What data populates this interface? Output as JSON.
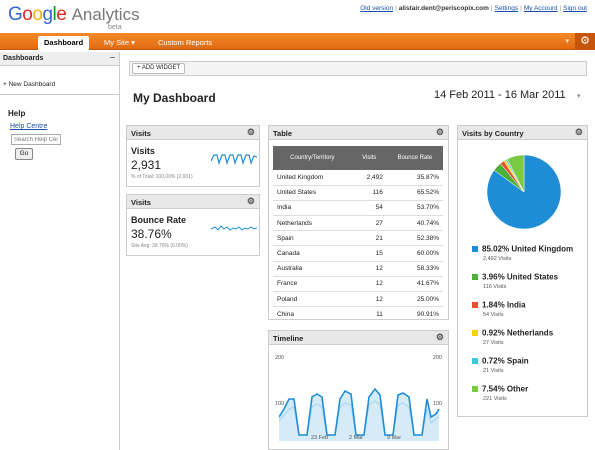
{
  "header": {
    "logo_google": "Google",
    "logo_analytics": "Analytics",
    "logo_beta": "beta",
    "links": [
      "Old version",
      "alistair.dent@periscopix.com",
      "Settings",
      "My Account",
      "Sign out"
    ]
  },
  "nav": {
    "tabs": [
      "Dashboard",
      "My Site",
      "Custom Reports"
    ],
    "my_site_caret": "▾"
  },
  "sidebar": {
    "title": "Dashboards",
    "new_dashboard": "+ New Dashboard",
    "help_title": "Help",
    "help_centre": "Help Centre",
    "search_placeholder": "Search Help Centre",
    "go": "Go"
  },
  "toolbar": {
    "add_widget": "+ ADD WIDGET"
  },
  "dashboard": {
    "title": "My Dashboard",
    "date_range": "14 Feb 2011 - 16 Mar 2011"
  },
  "widgets": {
    "visits": {
      "header": "Visits",
      "metric": "Visits",
      "value": "2,931",
      "sub": "% of Total: 100.00% (2,931)"
    },
    "bounce": {
      "header": "Visits",
      "metric": "Bounce Rate",
      "value": "38.76%",
      "sub": "Site Avg: 38.76% (0.00%)"
    },
    "table": {
      "header": "Table",
      "columns": [
        "Country/Territory",
        "Visits",
        "Bounce Rate"
      ],
      "rows": [
        [
          "United Kingdom",
          "2,492",
          "35.87%"
        ],
        [
          "United States",
          "116",
          "65.52%"
        ],
        [
          "India",
          "54",
          "53.70%"
        ],
        [
          "Netherlands",
          "27",
          "40.74%"
        ],
        [
          "Spain",
          "21",
          "52.38%"
        ],
        [
          "Canada",
          "15",
          "60.00%"
        ],
        [
          "Australia",
          "12",
          "58.33%"
        ],
        [
          "France",
          "12",
          "41.67%"
        ],
        [
          "Poland",
          "12",
          "25.00%"
        ],
        [
          "China",
          "11",
          "90.91%"
        ]
      ]
    },
    "timeline": {
      "header": "Timeline",
      "y_max_left": "200",
      "y_max_right": "200",
      "y_mid_left": "100",
      "y_mid_right": "100",
      "dates": [
        "23 Feb",
        "2 Mar",
        "9 Mar"
      ]
    },
    "country": {
      "header": "Visits by Country",
      "slices": [
        {
          "pct": "85.02% United Kingdom",
          "sub": "2,492 Visits",
          "color": "#1f8dd6",
          "value": 85.02
        },
        {
          "pct": "3.96% United States",
          "sub": "116 Visits",
          "color": "#4caf3c",
          "value": 3.96
        },
        {
          "pct": "1.84% India",
          "sub": "54 Visits",
          "color": "#e8502a",
          "value": 1.84
        },
        {
          "pct": "0.92% Netherlands",
          "sub": "27 Visits",
          "color": "#f2d600",
          "value": 0.92
        },
        {
          "pct": "0.72% Spain",
          "sub": "21 Visits",
          "color": "#3cc6e0",
          "value": 0.72
        },
        {
          "pct": "7.54% Other",
          "sub": "221 Visits",
          "color": "#7ac943",
          "value": 7.54
        }
      ]
    }
  }
}
